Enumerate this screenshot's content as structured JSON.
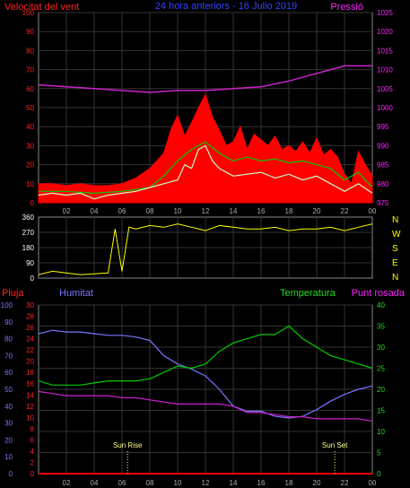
{
  "chart_data": [
    {
      "type": "line",
      "title": "24 hora anteriors - 16 Julio 2019",
      "ylabel_left": "Velocitat del vent",
      "ylabel_right": "Pressió",
      "x_ticks": [
        "02",
        "04",
        "06",
        "08",
        "10",
        "12",
        "14",
        "16",
        "18",
        "20",
        "22",
        "00"
      ],
      "y_left_ticks": [
        "0",
        "10",
        "20",
        "30",
        "40",
        "50",
        "60",
        "70",
        "80",
        "90",
        "100"
      ],
      "y_right_ticks": [
        "975",
        "980",
        "985",
        "990",
        "995",
        "1000",
        "1005",
        "1010",
        "1015",
        "1020",
        "1025"
      ],
      "ylim_left": [
        0,
        100
      ],
      "ylim_right": [
        975,
        1025
      ],
      "grid": true,
      "series": [
        {
          "name": "Pressió",
          "axis": "right",
          "color": "#cc22cc",
          "x": [
            0,
            2,
            4,
            6,
            8,
            10,
            12,
            14,
            16,
            18,
            20,
            22,
            24
          ],
          "values": [
            1006,
            1005.5,
            1005,
            1004.5,
            1004,
            1004.5,
            1004.5,
            1005,
            1005.5,
            1007,
            1009,
            1011,
            1011
          ]
        },
        {
          "name": "",
          "axis": "left",
          "color": "#ff0000",
          "x": [
            0,
            1,
            2,
            3,
            4,
            5,
            6,
            7,
            8,
            9,
            9.5,
            10,
            10.5,
            11,
            11.5,
            12,
            12.5,
            13,
            13.5,
            14,
            14.5,
            15,
            15.5,
            16,
            16.5,
            17,
            17.5,
            18,
            18.5,
            19,
            19.5,
            20,
            20.5,
            21,
            21.5,
            22,
            22.5,
            23,
            23.5,
            24
          ],
          "values": [
            10,
            10,
            9,
            10,
            9,
            9,
            10,
            13,
            18,
            26,
            38,
            46,
            35,
            42,
            50,
            57,
            45,
            38,
            30,
            32,
            40,
            28,
            36,
            33,
            30,
            35,
            28,
            30,
            27,
            32,
            26,
            34,
            25,
            28,
            24,
            15,
            10,
            27,
            20,
            14
          ]
        },
        {
          "name": "",
          "axis": "left",
          "color": "#00cc00",
          "x": [
            0,
            2,
            4,
            6,
            8,
            9,
            10,
            11,
            12,
            13,
            14,
            15,
            16,
            17,
            18,
            19,
            20,
            21,
            22,
            23,
            24
          ],
          "values": [
            6,
            6,
            5,
            6,
            8,
            14,
            22,
            28,
            32,
            26,
            22,
            24,
            22,
            23,
            21,
            22,
            20,
            18,
            12,
            16,
            8
          ]
        },
        {
          "name": "",
          "axis": "left",
          "color": "#ccffcc",
          "x": [
            0,
            1,
            2,
            3,
            4,
            5,
            6,
            7,
            8,
            9,
            10,
            10.5,
            11,
            11.5,
            12,
            12.5,
            13,
            14,
            15,
            16,
            17,
            18,
            19,
            20,
            21,
            22,
            23,
            24
          ],
          "values": [
            4,
            5,
            4,
            5,
            2,
            4,
            5,
            6,
            8,
            10,
            12,
            20,
            18,
            28,
            30,
            22,
            18,
            14,
            15,
            16,
            13,
            15,
            12,
            14,
            10,
            6,
            10,
            5
          ]
        }
      ]
    },
    {
      "type": "line",
      "title": "",
      "y_left_ticks": [
        "360",
        "270",
        "180",
        "90",
        "0"
      ],
      "y_right_labels": [
        "N",
        "W",
        "S",
        "E",
        "N"
      ],
      "ylim": [
        0,
        360
      ],
      "x_ticks": [],
      "grid": true,
      "series": [
        {
          "name": "",
          "color": "#ffff00",
          "x": [
            0,
            1,
            2,
            3,
            4,
            5,
            5.5,
            6,
            6.5,
            7,
            8,
            9,
            10,
            11,
            12,
            13,
            14,
            15,
            16,
            17,
            18,
            19,
            20,
            21,
            22,
            23,
            24
          ],
          "values": [
            20,
            40,
            30,
            20,
            25,
            30,
            290,
            40,
            300,
            290,
            310,
            300,
            320,
            300,
            280,
            310,
            300,
            290,
            290,
            300,
            280,
            290,
            290,
            300,
            280,
            300,
            320
          ]
        }
      ]
    },
    {
      "type": "line",
      "title": "",
      "labels": {
        "pluja": "Pluja",
        "humitat": "Humitat",
        "temperatura": "Temperatura",
        "punt_rosada": "Punt rosada"
      },
      "x_ticks": [
        "02",
        "04",
        "06",
        "08",
        "10",
        "12",
        "14",
        "16",
        "18",
        "20",
        "22",
        "00"
      ],
      "y_humitat_ticks": [
        "0",
        "10",
        "20",
        "30",
        "40",
        "50",
        "60",
        "70",
        "80",
        "90",
        "100"
      ],
      "y_pluja_ticks": [
        "0",
        "2",
        "4",
        "6",
        "8",
        "10",
        "12",
        "14",
        "16",
        "18",
        "20",
        "22",
        "24",
        "26",
        "28",
        "30"
      ],
      "y_temp_ticks": [
        "0",
        "5",
        "10",
        "15",
        "20",
        "25",
        "30",
        "35",
        "40"
      ],
      "ylim_humitat": [
        0,
        100
      ],
      "ylim_temp": [
        0,
        40
      ],
      "annotations": [
        {
          "label": "Sun Rise",
          "x": 6.4
        },
        {
          "label": "Sun Set",
          "x": 21.3
        }
      ],
      "grid": true,
      "series": [
        {
          "name": "Humitat",
          "axis": "humitat",
          "color": "#7777ff",
          "x": [
            0,
            1,
            2,
            3,
            4,
            5,
            6,
            7,
            8,
            9,
            10,
            11,
            12,
            13,
            14,
            15,
            16,
            17,
            18,
            19,
            20,
            21,
            22,
            23,
            24
          ],
          "values": [
            83,
            85,
            84,
            84,
            83,
            82,
            82,
            81,
            79,
            70,
            65,
            62,
            58,
            50,
            40,
            37,
            37,
            34,
            33,
            34,
            38,
            43,
            47,
            50,
            52
          ]
        },
        {
          "name": "Temperatura",
          "axis": "temp",
          "color": "#00cc00",
          "x": [
            0,
            1,
            2,
            3,
            4,
            5,
            6,
            7,
            8,
            9,
            10,
            11,
            12,
            13,
            14,
            15,
            16,
            17,
            18,
            19,
            20,
            21,
            22,
            23,
            24
          ],
          "values": [
            22,
            21,
            21,
            21,
            21.5,
            22,
            22,
            22,
            22.5,
            24,
            25.5,
            25,
            26,
            29,
            31,
            32,
            33,
            33,
            35,
            32,
            30,
            28,
            27,
            26,
            25
          ]
        },
        {
          "name": "Punt rosada",
          "axis": "temp",
          "color": "#cc22cc",
          "x": [
            0,
            1,
            2,
            3,
            4,
            5,
            6,
            7,
            8,
            9,
            10,
            11,
            12,
            13,
            14,
            15,
            16,
            17,
            18,
            19,
            20,
            21,
            22,
            23,
            24
          ],
          "values": [
            19.5,
            19,
            18.5,
            18.5,
            18.5,
            18.5,
            18,
            18,
            17.5,
            17,
            16.5,
            16.5,
            16.5,
            16.5,
            16,
            14.5,
            14.5,
            14,
            13.5,
            13.5,
            13,
            13,
            13,
            13,
            12.5
          ]
        },
        {
          "name": "Pluja",
          "axis": "pluja",
          "color": "#ff0000",
          "x": [
            0,
            24
          ],
          "values": [
            0,
            0
          ]
        }
      ]
    }
  ]
}
